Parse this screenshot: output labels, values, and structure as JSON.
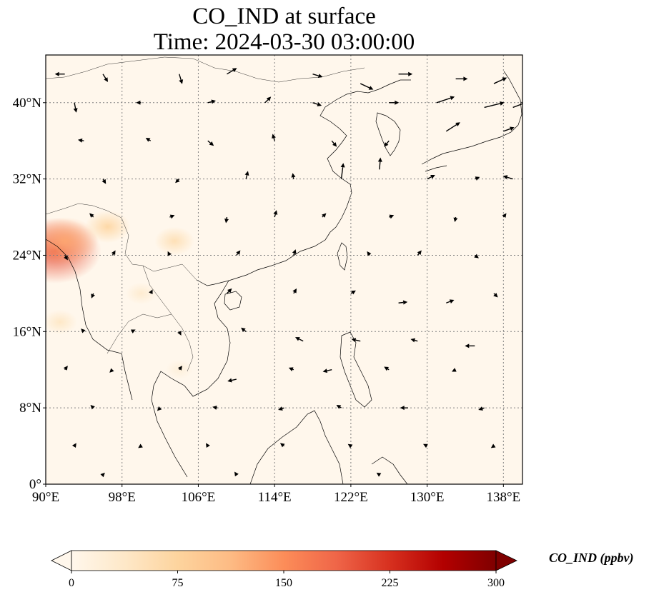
{
  "chart_data": {
    "type": "heatmap",
    "title": "CO_IND at surface",
    "subtitle": "Time: 2024-03-30 03:00:00",
    "map": {
      "lon_range": [
        90,
        140
      ],
      "lat_range": [
        0,
        45
      ],
      "x_ticks": [
        "90°E",
        "98°E",
        "106°E",
        "114°E",
        "122°E",
        "130°E",
        "138°E"
      ],
      "x_tick_values": [
        90,
        98,
        106,
        114,
        122,
        130,
        138
      ],
      "y_ticks": [
        "0°",
        "8°N",
        "16°N",
        "24°N",
        "32°N",
        "40°N"
      ],
      "y_tick_values": [
        0,
        8,
        16,
        24,
        32,
        40
      ],
      "grid": true,
      "grid_style": "dotted",
      "overlay": "surface wind vectors (quiver arrows)"
    },
    "colorbar": {
      "label": "CO_IND (ppbv)",
      "min": 0,
      "max": 300,
      "ticks": [
        "0",
        "75",
        "150",
        "225",
        "300"
      ],
      "tick_values": [
        0,
        75,
        150,
        225,
        300
      ],
      "extend": "both",
      "colormap": "OrRd",
      "colors": [
        "#fff7ec",
        "#fee8c8",
        "#fdd49e",
        "#fdbb84",
        "#fc8d59",
        "#ef6548",
        "#d7301f",
        "#b30000",
        "#7f0000"
      ]
    },
    "hotspots": [
      {
        "lon": 91.0,
        "lat": 24.5,
        "value": 200
      },
      {
        "lon": 92.0,
        "lat": 25.5,
        "value": 130
      },
      {
        "lon": 96.5,
        "lat": 27.0,
        "value": 70
      },
      {
        "lon": 103.5,
        "lat": 25.5,
        "value": 55
      },
      {
        "lon": 91.5,
        "lat": 17.0,
        "value": 40
      },
      {
        "lon": 100.0,
        "lat": 20.0,
        "value": 30
      },
      {
        "lon": 104.0,
        "lat": 12.0,
        "value": 20
      }
    ],
    "wind_vectors": [
      {
        "lon": 92,
        "lat": 43,
        "u": -1,
        "v": 0
      },
      {
        "lon": 96,
        "lat": 43,
        "u": 0.5,
        "v": -0.8
      },
      {
        "lon": 104,
        "lat": 43,
        "u": 0.3,
        "v": -1
      },
      {
        "lon": 109,
        "lat": 43,
        "u": 1,
        "v": 0.6
      },
      {
        "lon": 118,
        "lat": 43,
        "u": 1,
        "v": -0.3
      },
      {
        "lon": 123,
        "lat": 42,
        "u": 1.3,
        "v": -0.6
      },
      {
        "lon": 127,
        "lat": 43,
        "u": 1.4,
        "v": 0
      },
      {
        "lon": 133,
        "lat": 42.5,
        "u": 1.2,
        "v": 0
      },
      {
        "lon": 137,
        "lat": 42,
        "u": 1.3,
        "v": 0.6
      },
      {
        "lon": 93,
        "lat": 40,
        "u": 0.2,
        "v": -1
      },
      {
        "lon": 100,
        "lat": 40,
        "u": -0.5,
        "v": 0
      },
      {
        "lon": 107,
        "lat": 40,
        "u": 0.8,
        "v": 0.2
      },
      {
        "lon": 113,
        "lat": 40,
        "u": 0.6,
        "v": 0.6
      },
      {
        "lon": 118,
        "lat": 40,
        "u": 0.9,
        "v": -0.3
      },
      {
        "lon": 126,
        "lat": 40,
        "u": 1,
        "v": 0
      },
      {
        "lon": 131,
        "lat": 40,
        "u": 1.8,
        "v": 0.6
      },
      {
        "lon": 136,
        "lat": 39.5,
        "u": 2,
        "v": 0.5
      },
      {
        "lon": 139,
        "lat": 39.5,
        "u": 1.3,
        "v": 0.5
      },
      {
        "lon": 94,
        "lat": 36,
        "u": -0.6,
        "v": 0.1
      },
      {
        "lon": 101,
        "lat": 36,
        "u": -0.5,
        "v": 0.3
      },
      {
        "lon": 107,
        "lat": 36,
        "u": 0.6,
        "v": -0.5
      },
      {
        "lon": 114,
        "lat": 36,
        "u": -0.2,
        "v": 0.7
      },
      {
        "lon": 120,
        "lat": 36,
        "u": 0.5,
        "v": -0.6
      },
      {
        "lon": 126,
        "lat": 36,
        "u": -0.5,
        "v": -0.6
      },
      {
        "lon": 132,
        "lat": 37,
        "u": 1.4,
        "v": 0.9
      },
      {
        "lon": 138,
        "lat": 37,
        "u": 1.1,
        "v": 0.4
      },
      {
        "lon": 96,
        "lat": 32,
        "u": 0.3,
        "v": -0.5
      },
      {
        "lon": 104,
        "lat": 32,
        "u": -0.4,
        "v": -0.4
      },
      {
        "lon": 111,
        "lat": 32,
        "u": 0.2,
        "v": 0.8
      },
      {
        "lon": 116,
        "lat": 32,
        "u": -0.1,
        "v": 0.6
      },
      {
        "lon": 121,
        "lat": 32,
        "u": 0.2,
        "v": 1.6
      },
      {
        "lon": 125,
        "lat": 33,
        "u": 0.1,
        "v": 1.2
      },
      {
        "lon": 130,
        "lat": 32,
        "u": 0.8,
        "v": 0.4
      },
      {
        "lon": 135,
        "lat": 32,
        "u": 0.5,
        "v": 0.2
      },
      {
        "lon": 139,
        "lat": 32,
        "u": -1,
        "v": 0.3
      },
      {
        "lon": 95,
        "lat": 28,
        "u": -0.4,
        "v": 0.4
      },
      {
        "lon": 103,
        "lat": 28,
        "u": 0.5,
        "v": 0.2
      },
      {
        "lon": 109,
        "lat": 28,
        "u": -0.1,
        "v": -0.6
      },
      {
        "lon": 114,
        "lat": 28,
        "u": 0.2,
        "v": 0.7
      },
      {
        "lon": 119,
        "lat": 28,
        "u": 0.4,
        "v": 0.4
      },
      {
        "lon": 126,
        "lat": 28,
        "u": 0.5,
        "v": 0.2
      },
      {
        "lon": 133,
        "lat": 28,
        "u": -0.1,
        "v": -0.5
      },
      {
        "lon": 138,
        "lat": 28,
        "u": 0.3,
        "v": 0.4
      },
      {
        "lon": 92,
        "lat": 24,
        "u": 0.3,
        "v": -0.5
      },
      {
        "lon": 97,
        "lat": 24,
        "u": 0.3,
        "v": 0.5
      },
      {
        "lon": 103,
        "lat": 24,
        "u": -0.2,
        "v": 0.4
      },
      {
        "lon": 110,
        "lat": 24,
        "u": 0.4,
        "v": 0.5
      },
      {
        "lon": 116,
        "lat": 24,
        "u": 0.2,
        "v": 0.6
      },
      {
        "lon": 124,
        "lat": 24,
        "u": -0.3,
        "v": 0.4
      },
      {
        "lon": 129,
        "lat": 24,
        "u": 0.4,
        "v": 0.5
      },
      {
        "lon": 135,
        "lat": 24,
        "u": 0.4,
        "v": -0.3
      },
      {
        "lon": 95,
        "lat": 20,
        "u": -0.2,
        "v": -0.5
      },
      {
        "lon": 101,
        "lat": 20,
        "u": 0.2,
        "v": 0.4
      },
      {
        "lon": 109,
        "lat": 20,
        "u": 0.5,
        "v": 0.5
      },
      {
        "lon": 116,
        "lat": 20,
        "u": 0.3,
        "v": 0.5
      },
      {
        "lon": 122,
        "lat": 20,
        "u": 0.5,
        "v": 0.3
      },
      {
        "lon": 127,
        "lat": 19,
        "u": 0.9,
        "v": 0.1
      },
      {
        "lon": 132,
        "lat": 19,
        "u": 0.8,
        "v": 0.3
      },
      {
        "lon": 137,
        "lat": 20,
        "u": 0.4,
        "v": -0.4
      },
      {
        "lon": 94,
        "lat": 16,
        "u": -0.3,
        "v": 0.3
      },
      {
        "lon": 99,
        "lat": 16,
        "u": 0.4,
        "v": 0.2
      },
      {
        "lon": 104,
        "lat": 16,
        "u": 0.2,
        "v": -0.4
      },
      {
        "lon": 111,
        "lat": 16,
        "u": -0.5,
        "v": 0.4
      },
      {
        "lon": 117,
        "lat": 15,
        "u": -0.8,
        "v": 0.4
      },
      {
        "lon": 123,
        "lat": 15,
        "u": -0.9,
        "v": 0.2
      },
      {
        "lon": 129,
        "lat": 15,
        "u": -0.7,
        "v": 0.2
      },
      {
        "lon": 135,
        "lat": 14.5,
        "u": -1,
        "v": 0
      },
      {
        "lon": 92,
        "lat": 12,
        "u": 0.3,
        "v": 0.4
      },
      {
        "lon": 97,
        "lat": 12,
        "u": -0.3,
        "v": -0.3
      },
      {
        "lon": 104,
        "lat": 12,
        "u": 0.3,
        "v": 0.4
      },
      {
        "lon": 110,
        "lat": 11,
        "u": -0.9,
        "v": -0.2
      },
      {
        "lon": 116,
        "lat": 12,
        "u": -0.5,
        "v": 0.2
      },
      {
        "lon": 120,
        "lat": 12,
        "u": -0.9,
        "v": -0.2
      },
      {
        "lon": 126,
        "lat": 12,
        "u": -0.5,
        "v": 0.3
      },
      {
        "lon": 133,
        "lat": 12,
        "u": -0.4,
        "v": -0.2
      },
      {
        "lon": 95,
        "lat": 8,
        "u": -0.3,
        "v": 0.3
      },
      {
        "lon": 102,
        "lat": 8,
        "u": -0.3,
        "v": -0.3
      },
      {
        "lon": 108,
        "lat": 8,
        "u": -0.5,
        "v": 0.1
      },
      {
        "lon": 115,
        "lat": 8,
        "u": -0.6,
        "v": -0.2
      },
      {
        "lon": 121,
        "lat": 8,
        "u": -0.5,
        "v": 0.3
      },
      {
        "lon": 128,
        "lat": 8,
        "u": -0.8,
        "v": 0
      },
      {
        "lon": 136,
        "lat": 8,
        "u": -0.6,
        "v": -0.2
      },
      {
        "lon": 93,
        "lat": 4,
        "u": 0.2,
        "v": 0.3
      },
      {
        "lon": 100,
        "lat": 4,
        "u": -0.3,
        "v": -0.2
      },
      {
        "lon": 107,
        "lat": 4,
        "u": -0.2,
        "v": 0.3
      },
      {
        "lon": 115,
        "lat": 4,
        "u": -0.4,
        "v": 0.3
      },
      {
        "lon": 122,
        "lat": 4,
        "u": -0.3,
        "v": 0.2
      },
      {
        "lon": 130,
        "lat": 4,
        "u": -0.4,
        "v": 0.2
      },
      {
        "lon": 137,
        "lat": 4,
        "u": -0.3,
        "v": -0.2
      },
      {
        "lon": 96,
        "lat": 1,
        "u": 0.2,
        "v": 0.2
      },
      {
        "lon": 110,
        "lat": 1,
        "u": -0.2,
        "v": 0.3
      },
      {
        "lon": 125,
        "lat": 1,
        "u": -0.3,
        "v": 0.2
      }
    ]
  }
}
